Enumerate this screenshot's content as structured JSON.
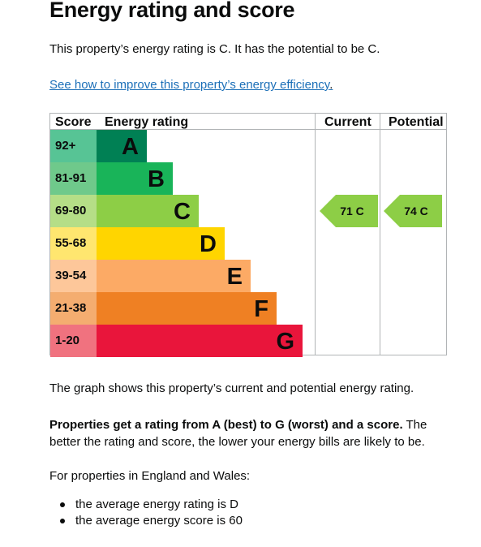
{
  "heading": "Energy rating and score",
  "intro": "This property’s energy rating is C. It has the potential to be C.",
  "improve_link": "See how to improve this property’s energy efficiency",
  "improve_link_tail": ".",
  "chart_data": {
    "type": "table",
    "headers": {
      "score": "Score",
      "rating": "Energy rating",
      "current": "Current",
      "potential": "Potential"
    },
    "bands": [
      {
        "score": "92+",
        "letter": "A",
        "color": "#008054",
        "score_bg": "#57c495"
      },
      {
        "score": "81-91",
        "letter": "B",
        "color": "#19b459",
        "score_bg": "#6fc98b"
      },
      {
        "score": "69-80",
        "letter": "C",
        "color": "#8dce46",
        "score_bg": "#b5de87"
      },
      {
        "score": "55-68",
        "letter": "D",
        "color": "#ffd500",
        "score_bg": "#ffe66f"
      },
      {
        "score": "39-54",
        "letter": "E",
        "color": "#fcaa65",
        "score_bg": "#fdc79a"
      },
      {
        "score": "21-38",
        "letter": "F",
        "color": "#ef8023",
        "score_bg": "#f4ad70"
      },
      {
        "score": "1-20",
        "letter": "G",
        "color": "#e9153b",
        "score_bg": "#f0727f"
      }
    ],
    "current": {
      "label": "71 C",
      "score": 71,
      "band": "C"
    },
    "potential": {
      "label": "74 C",
      "score": 74,
      "band": "C"
    }
  },
  "graph_caption": "The graph shows this property’s current and potential energy rating.",
  "rating_note_bold": "Properties get a rating from A (best) to G (worst) and a score.",
  "rating_note_rest": " The better the rating and score, the lower your energy bills are likely to be.",
  "region_intro": "For properties in England and Wales:",
  "averages": [
    "the average energy rating is D",
    "the average energy score is 60"
  ]
}
